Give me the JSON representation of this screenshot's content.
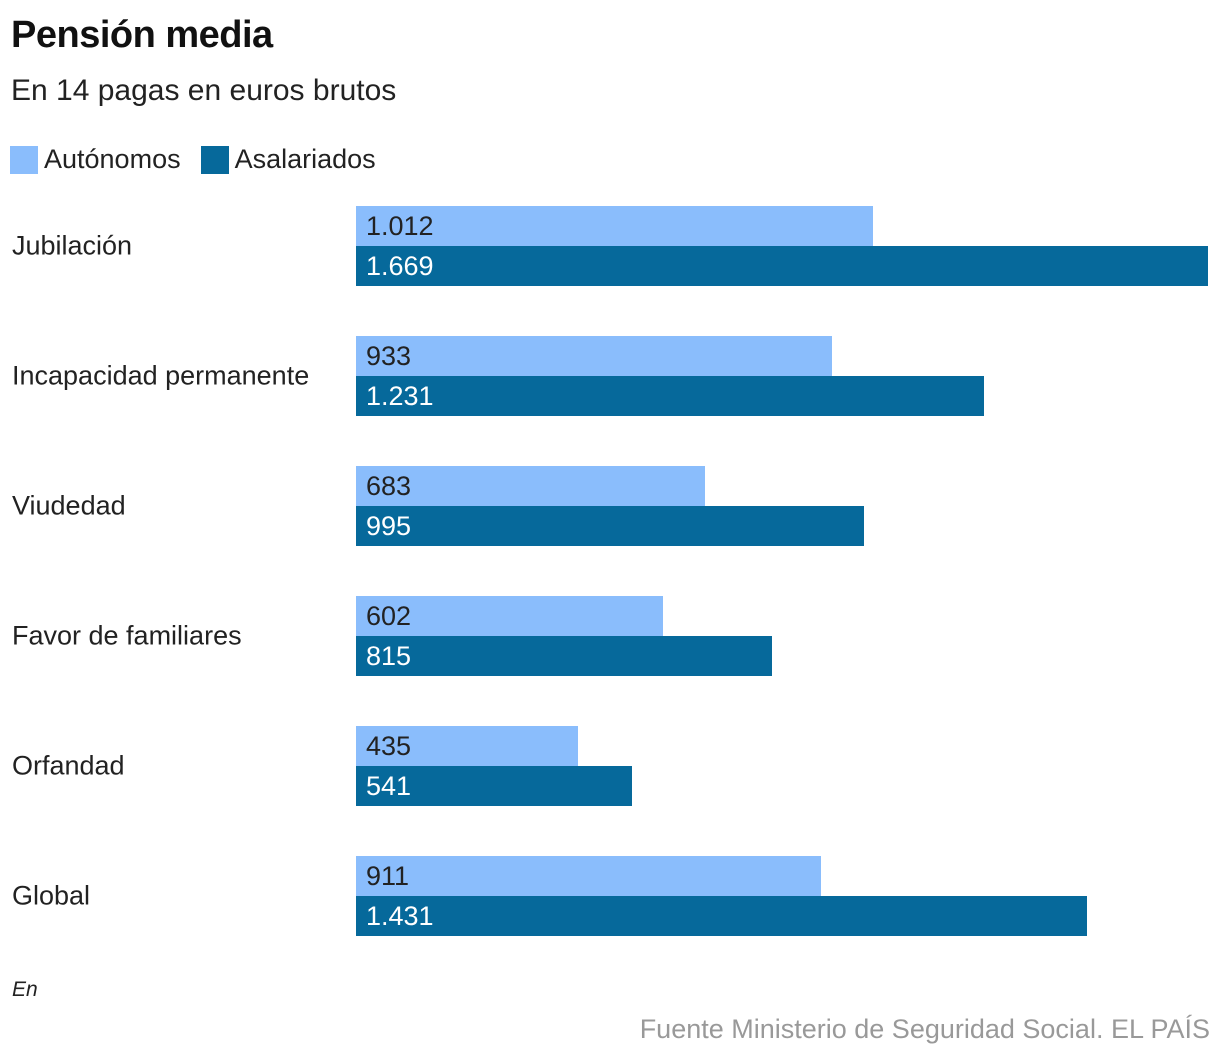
{
  "chart_data": {
    "type": "bar",
    "orientation": "horizontal",
    "title": "Pensión media",
    "subtitle": "En 14 pagas en euros brutos",
    "categories": [
      "Jubilación",
      "Incapacidad permanente",
      "Viudedad",
      "Favor de familiares",
      "Orfandad",
      "Global"
    ],
    "series": [
      {
        "name": "Autónomos",
        "color": "#8abdfc",
        "values": [
          1012,
          933,
          683,
          602,
          435,
          911
        ],
        "labels": [
          "1.012",
          "933",
          "683",
          "602",
          "435",
          "911"
        ]
      },
      {
        "name": "Asalariados",
        "color": "#06699b",
        "values": [
          1669,
          1231,
          995,
          815,
          541,
          1431
        ],
        "labels": [
          "1.669",
          "1.231",
          "995",
          "815",
          "541",
          "1.431"
        ]
      }
    ],
    "xlim": [
      0,
      1669
    ],
    "grid": false,
    "legend_position": "top-left",
    "note": "En",
    "source": "Fuente Ministerio de Seguridad Social. EL PAÍS"
  }
}
